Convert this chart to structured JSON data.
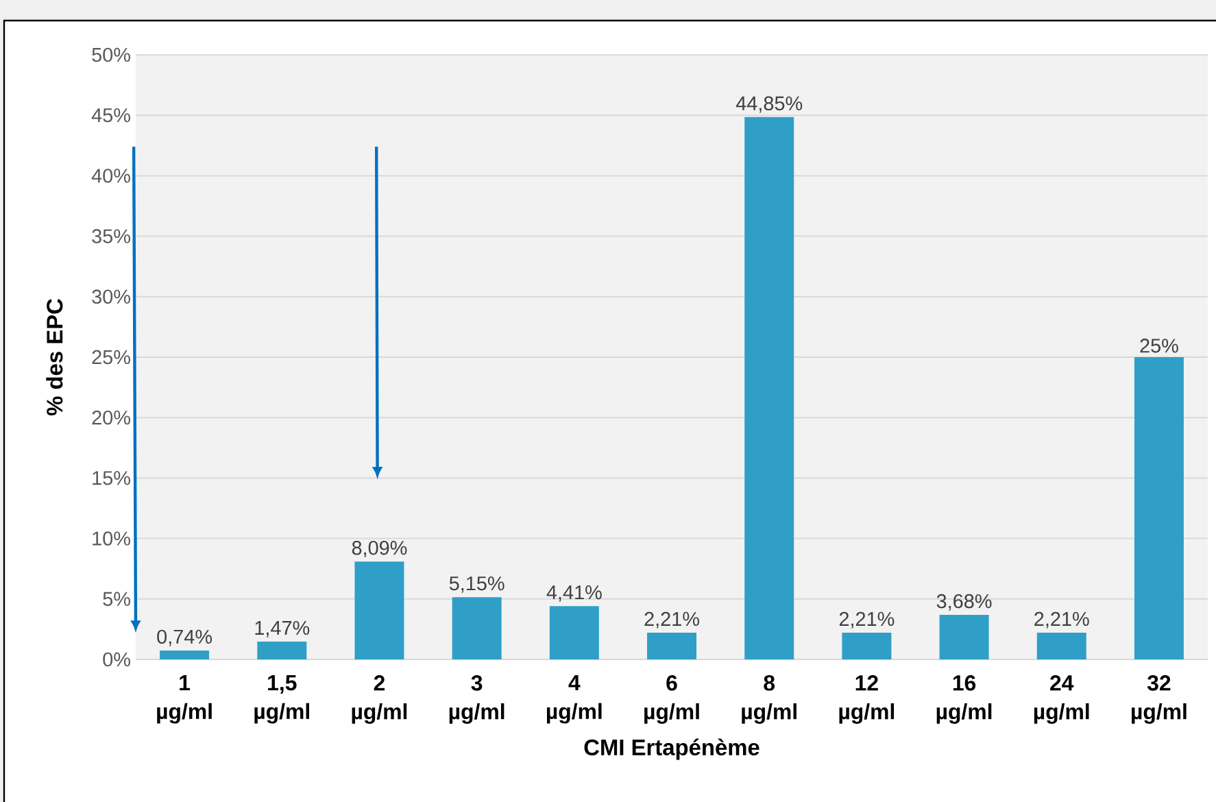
{
  "chart_data": {
    "type": "bar",
    "xlabel": "CMI Ertapénème",
    "ylabel": "% des EPC",
    "categories": [
      "1 µg/ml",
      "1,5 µg/ml",
      "2 µg/ml",
      "3 µg/ml",
      "4 µg/ml",
      "6 µg/ml",
      "8 µg/ml",
      "12 µg/ml",
      "16 µg/ml",
      "24 µg/ml",
      "32 µg/ml"
    ],
    "values": [
      0.74,
      1.47,
      8.09,
      5.15,
      4.41,
      2.21,
      44.85,
      2.21,
      3.68,
      2.21,
      25
    ],
    "value_labels": [
      "0,74%",
      "1,47%",
      "8,09%",
      "5,15%",
      "4,41%",
      "2,21%",
      "44,85%",
      "2,21%",
      "3,68%",
      "2,21%",
      "25%"
    ],
    "color": "#2f9fc8",
    "ylim": [
      0,
      50
    ],
    "yticks": [
      {
        "value": 0,
        "label": "0%"
      },
      {
        "value": 5,
        "label": "5%"
      },
      {
        "value": 10,
        "label": "10%"
      },
      {
        "value": 15,
        "label": "15%"
      },
      {
        "value": 20,
        "label": "20%"
      },
      {
        "value": 25,
        "label": "25%"
      },
      {
        "value": 30,
        "label": "30%"
      },
      {
        "value": 35,
        "label": "35%"
      },
      {
        "value": 40,
        "label": "40%"
      },
      {
        "value": 45,
        "label": "45%"
      },
      {
        "value": 50,
        "label": "50%"
      }
    ],
    "grid": "y"
  }
}
